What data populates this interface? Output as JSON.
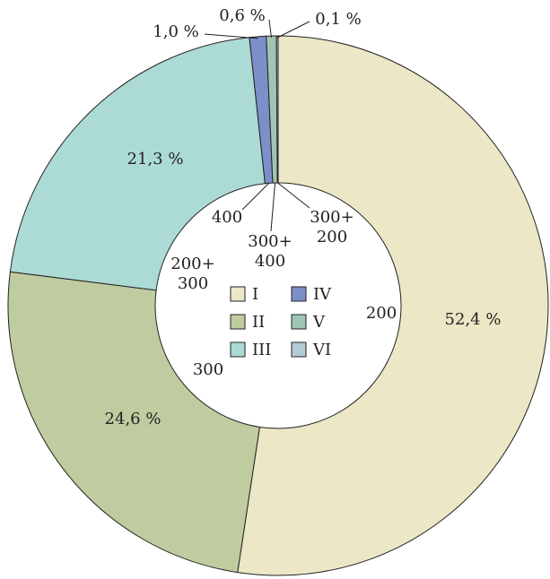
{
  "chart_data": {
    "type": "donut",
    "categories": [
      "I",
      "II",
      "III",
      "IV",
      "V",
      "VI"
    ],
    "values": [
      52.4,
      24.6,
      21.3,
      1.0,
      0.6,
      0.1
    ],
    "value_labels": [
      "52,4 %",
      "24,6 %",
      "21,3 %",
      "1,0 %",
      "0,6 %",
      "0,1 %"
    ],
    "segment_labels": [
      [
        "200"
      ],
      [
        "300"
      ],
      [
        "200+",
        "300"
      ],
      [
        "400"
      ],
      [
        "300+",
        "400"
      ],
      [
        "300+",
        "200"
      ]
    ],
    "colors": [
      "#ebe7c7",
      "#bfcc9f",
      "#acdbd6",
      "#7d8fc8",
      "#9fc6b4",
      "#b4cbd6"
    ]
  }
}
